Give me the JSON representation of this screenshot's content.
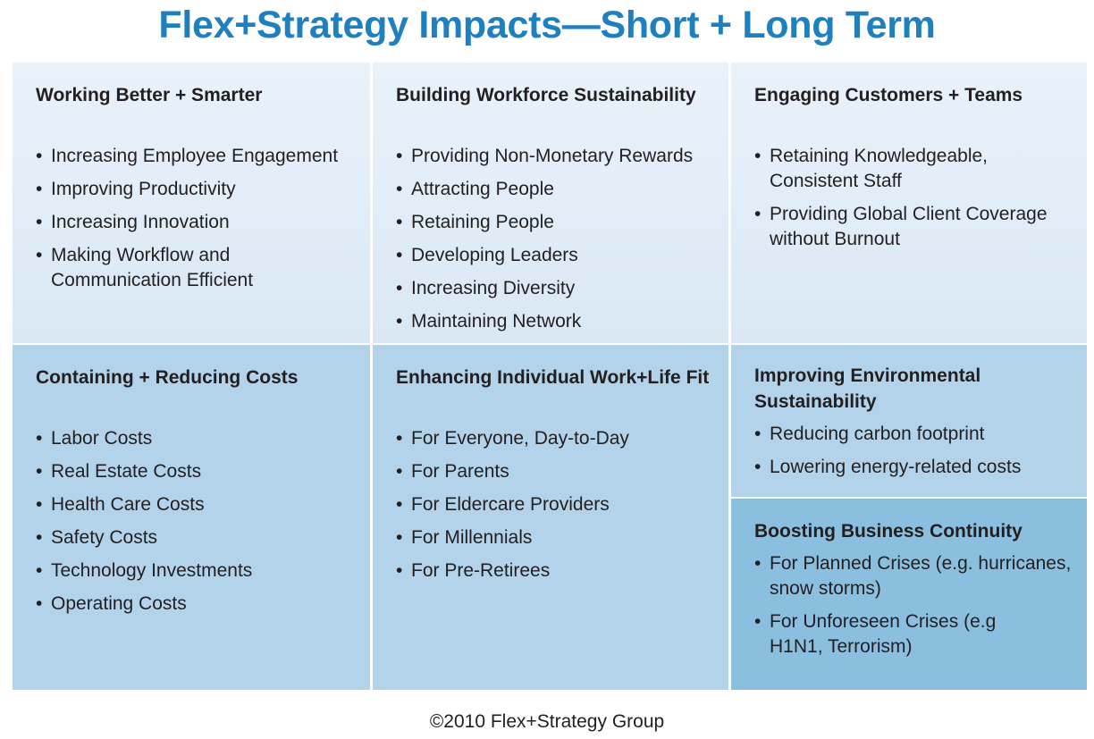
{
  "title": "Flex+Strategy Impacts—Short + Long Term",
  "cells": [
    {
      "heading": "Working Better + Smarter",
      "items": [
        "Increasing Employee Engagement",
        "Improving Productivity",
        "Increasing Innovation",
        "Making Workflow and Communication Efficient"
      ]
    },
    {
      "heading": "Building Workforce Sustainability",
      "items": [
        "Providing Non-Monetary Rewards",
        "Attracting People",
        "Retaining People",
        "Developing Leaders",
        "Increasing Diversity",
        "Maintaining Network"
      ]
    },
    {
      "heading": "Engaging Customers + Teams",
      "items": [
        "Retaining Knowledgeable, Consistent Staff",
        "Providing Global Client Coverage without Burnout"
      ]
    },
    {
      "heading": "Containing + Reducing Costs",
      "items": [
        "Labor Costs",
        "Real Estate Costs",
        "Health Care Costs",
        "Safety Costs",
        "Technology Investments",
        "Operating Costs"
      ]
    },
    {
      "heading": "Enhancing  Individual Work+Life Fit",
      "items": [
        "For Everyone, Day-to-Day",
        "For Parents",
        "For Eldercare Providers",
        "For Millennials",
        "For Pre-Retirees"
      ]
    },
    {
      "heading": "Improving Environmental Sustainability",
      "items": [
        "Reducing carbon footprint",
        "Lowering energy-related costs"
      ]
    },
    {
      "heading": "Boosting Business Continuity",
      "items": [
        "For Planned Crises (e.g. hurricanes, snow storms)",
        "For Unforeseen Crises (e.g H1N1, Terrorism)"
      ]
    }
  ],
  "footer": "©2010 Flex+Strategy Group",
  "colors": {
    "title": "#1f80c0",
    "top_cells": "#e3eef8",
    "bottom_cells": "#b2d3e9",
    "accent_cell": "#8bbfdf"
  }
}
